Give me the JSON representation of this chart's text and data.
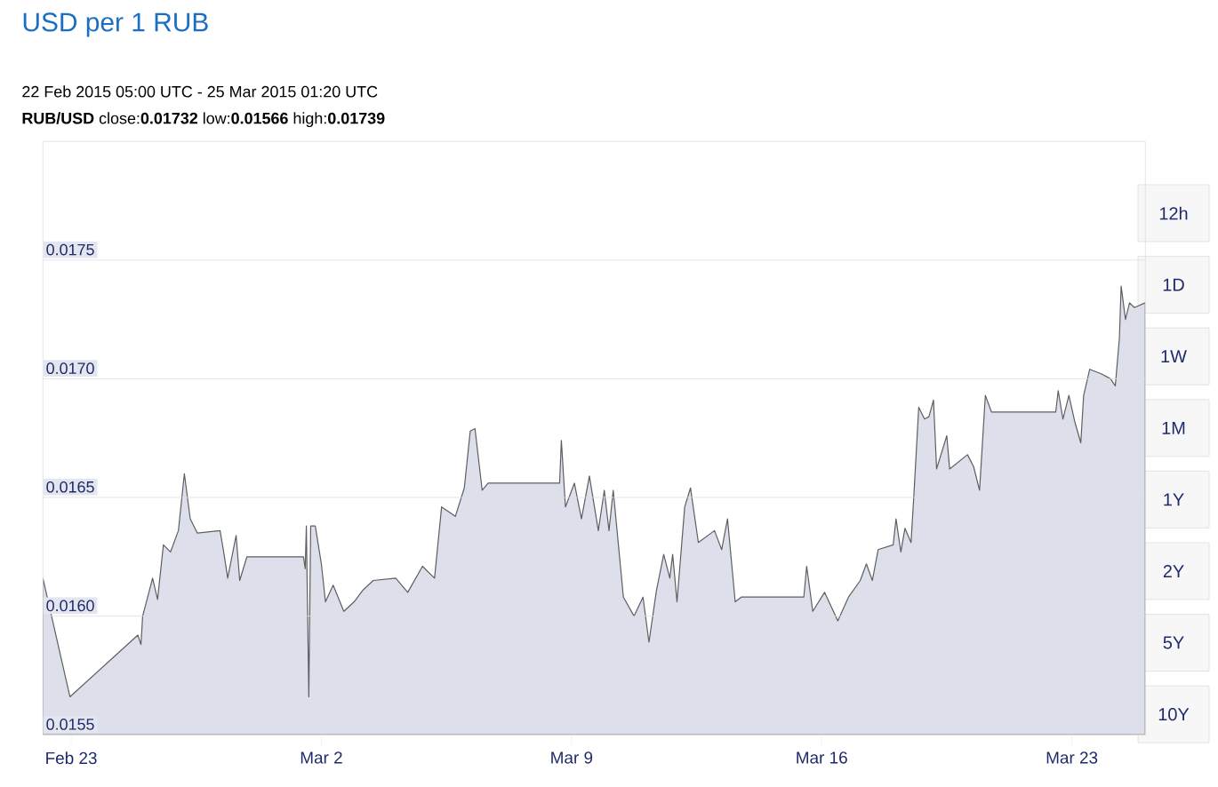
{
  "chart_data": {
    "type": "area",
    "title": "USD per 1 RUB",
    "subtitle": "22 Feb 2015 05:00 UTC - 25 Mar 2015 01:20 UTC",
    "annotations": [
      "**RUB/USD** close:**0.01732** low:**0.01566** high:**0.01739**",
      "12h",
      "1D",
      "1W",
      "1M",
      "1Y",
      "2Y",
      "5Y",
      "10Y"
    ],
    "x": [
      "2015-02-22T05:00",
      "2015-02-22T23:10",
      "2015-02-24T20:45",
      "2015-02-24T22:50",
      "2015-02-25T00:00",
      "2015-02-25T06:40",
      "2015-02-25T10:00",
      "2015-02-25T13:55",
      "2015-02-25T18:40",
      "2015-02-26T00:00",
      "2015-02-26T04:00",
      "2015-02-26T07:55",
      "2015-02-26T12:40",
      "2015-02-27T04:00",
      "2015-02-27T06:40",
      "2015-02-27T09:05",
      "2015-02-27T14:45",
      "2015-02-27T17:10",
      "2015-02-27T22:00",
      "2015-02-28T01:55",
      "2015-03-01T12:00",
      "2015-03-01T13:10",
      "2015-03-01T13:55",
      "2015-03-01T15:35",
      "2015-03-01T16:50",
      "2015-03-01T19:55",
      "2015-03-02T00:00",
      "2015-03-02T02:45",
      "2015-03-02T07:55",
      "2015-03-02T15:05",
      "2015-03-02T22:00",
      "2015-03-03T04:00",
      "2015-03-03T10:50",
      "2015-03-04T01:55",
      "2015-03-04T10:00",
      "2015-03-04T19:55",
      "2015-03-05T04:00",
      "2015-03-05T08:45",
      "2015-03-05T18:00",
      "2015-03-06T00:00",
      "2015-03-06T04:00",
      "2015-03-06T07:10",
      "2015-03-06T12:00",
      "2015-03-06T16:00",
      "2015-03-08T16:00",
      "2015-03-08T17:10",
      "2015-03-08T19:55",
      "2015-03-09T01:55",
      "2015-03-09T06:40",
      "2015-03-09T12:00",
      "2015-03-09T18:00",
      "2015-03-09T22:00",
      "2015-03-10T01:10",
      "2015-03-10T04:00",
      "2015-03-10T10:50",
      "2015-03-10T18:00",
      "2015-03-11T00:00",
      "2015-03-11T04:00",
      "2015-03-11T09:05",
      "2015-03-11T13:55",
      "2015-03-11T18:00",
      "2015-03-11T19:55",
      "2015-03-11T22:50",
      "2015-03-12T04:00",
      "2015-03-12T07:55",
      "2015-03-12T13:10",
      "2015-03-13T00:00",
      "2015-03-13T04:50",
      "2015-03-13T08:45",
      "2015-03-13T13:55",
      "2015-03-13T18:00",
      "2015-03-15T12:00",
      "2015-03-15T13:55",
      "2015-03-15T18:00",
      "2015-03-16T01:55",
      "2015-03-16T10:50",
      "2015-03-16T18:00",
      "2015-03-17T01:55",
      "2015-03-17T06:00",
      "2015-03-17T10:00",
      "2015-03-17T13:55",
      "2015-03-18T00:00",
      "2015-03-18T01:55",
      "2015-03-18T05:10",
      "2015-03-18T07:55",
      "2015-03-18T12:00",
      "2015-03-18T13:55",
      "2015-03-18T17:10",
      "2015-03-18T21:05",
      "2015-03-19T00:00",
      "2015-03-19T03:05",
      "2015-03-19T05:10",
      "2015-03-19T12:00",
      "2015-03-19T13:55",
      "2015-03-20T01:55",
      "2015-03-20T06:00",
      "2015-03-20T10:00",
      "2015-03-20T13:55",
      "2015-03-20T18:00",
      "2015-03-22T13:10",
      "2015-03-22T14:50",
      "2015-03-22T18:00",
      "2015-03-22T22:00",
      "2015-03-23T01:55",
      "2015-03-23T06:00",
      "2015-03-23T07:55",
      "2015-03-23T12:00",
      "2015-03-23T19:55",
      "2015-03-24T01:55",
      "2015-03-24T05:10",
      "2015-03-24T07:55",
      "2015-03-24T09:05",
      "2015-03-24T12:00",
      "2015-03-24T14:45",
      "2015-03-24T18:00",
      "2015-03-25T01:20"
    ],
    "series": [
      {
        "color": "#dde0ea",
        "values": [
          0.01616,
          0.01566,
          0.01592,
          0.01588,
          0.016,
          0.01616,
          0.01607,
          0.0163,
          0.01627,
          0.01636,
          0.0166,
          0.01641,
          0.01635,
          0.01636,
          0.01626,
          0.01616,
          0.01634,
          0.01615,
          0.01625,
          0.01625,
          0.01625,
          0.0162,
          0.01638,
          0.01566,
          0.01638,
          0.01638,
          0.01622,
          0.01606,
          0.01613,
          0.01602,
          0.01606,
          0.01611,
          0.01615,
          0.01616,
          0.0161,
          0.01621,
          0.01616,
          0.01646,
          0.01642,
          0.01654,
          0.01678,
          0.01679,
          0.01653,
          0.01656,
          0.01656,
          0.01674,
          0.01646,
          0.01656,
          0.01641,
          0.01659,
          0.01636,
          0.01653,
          0.01636,
          0.01653,
          0.01608,
          0.016,
          0.01608,
          0.01589,
          0.01611,
          0.01626,
          0.01616,
          0.01626,
          0.01606,
          0.01646,
          0.01654,
          0.01631,
          0.01636,
          0.01628,
          0.01641,
          0.01606,
          0.01608,
          0.01608,
          0.01621,
          0.01602,
          0.0161,
          0.01598,
          0.01608,
          0.01615,
          0.01622,
          0.01615,
          0.01628,
          0.0163,
          0.01641,
          0.01627,
          0.01637,
          0.01631,
          0.01651,
          0.01688,
          0.01683,
          0.01684,
          0.01691,
          0.01662,
          0.01676,
          0.01662,
          0.01668,
          0.01663,
          0.01653,
          0.01693,
          0.01686,
          0.01686,
          0.01695,
          0.01683,
          0.01693,
          0.01682,
          0.01673,
          0.01693,
          0.01704,
          0.01702,
          0.017,
          0.01697,
          0.01717,
          0.01739,
          0.01725,
          0.01732,
          0.0173,
          0.01732
        ]
      }
    ],
    "xlim": [
      "2015-02-22T05:00",
      "2015-03-25T01:20"
    ],
    "xticks": [
      {
        "value": "2015-02-23",
        "label": "Feb 23"
      },
      {
        "value": "2015-03-02",
        "label": "Mar 2"
      },
      {
        "value": "2015-03-09",
        "label": "Mar 9"
      },
      {
        "value": "2015-03-16",
        "label": "Mar 16"
      },
      {
        "value": "2015-03-23",
        "label": "Mar 23"
      }
    ],
    "ylim": [
      0.0155,
      0.018
    ],
    "yticks": [
      0.0155,
      {
        "value": 0.016,
        "label": "0.0160"
      },
      0.0165,
      {
        "value": 0.017,
        "label": "0.0170"
      },
      0.0175
    ],
    "grid": "y"
  }
}
